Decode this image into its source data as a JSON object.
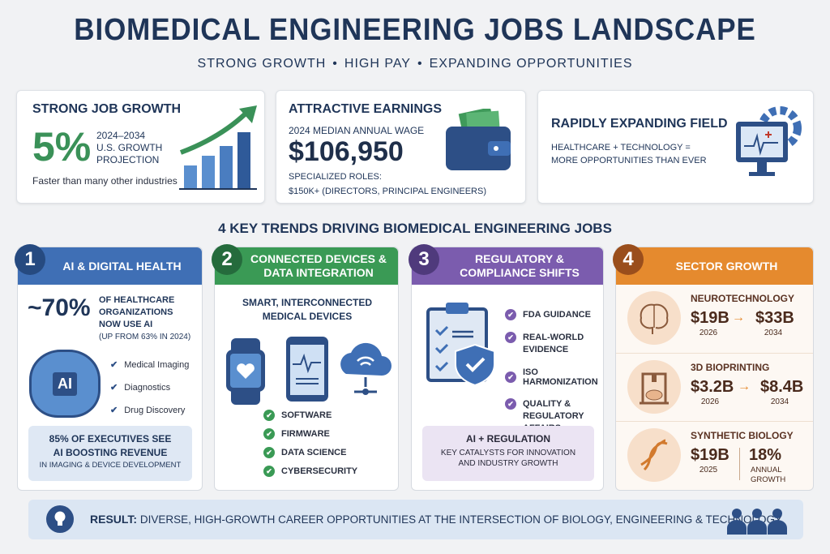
{
  "header": {
    "title": "BIOMEDICAL ENGINEERING JOBS LANDSCAPE",
    "subtitle": [
      "STRONG GROWTH",
      "HIGH PAY",
      "EXPANDING OPPORTUNITIES"
    ],
    "separator": "•"
  },
  "cards": {
    "growth": {
      "title": "STRONG JOB GROWTH",
      "value": "5%",
      "desc_lines": [
        "2024–2034",
        "U.S. GROWTH",
        "PROJECTION"
      ],
      "note": "Faster than many other industries",
      "icon": "bar-chart-arrow-icon"
    },
    "earnings": {
      "title": "ATTRACTIVE EARNINGS",
      "label": "2024 MEDIAN ANNUAL WAGE",
      "value": "$106,950",
      "roles_label": "SPECIALIZED ROLES:",
      "roles_value": "$150K+ (DIRECTORS, PRINCIPAL ENGINEERS)",
      "icon": "wallet-icon"
    },
    "field": {
      "title": "RAPIDLY EXPANDING FIELD",
      "desc_lines": [
        "HEALTHCARE + TECHNOLOGY =",
        "MORE OPPORTUNITIES THAN EVER"
      ],
      "icon": "monitor-gear-icon"
    }
  },
  "trends_heading": "4 KEY TRENDS DRIVING BIOMEDICAL ENGINEERING JOBS",
  "trends": [
    {
      "number": "1",
      "title": "AI & DIGITAL HEALTH",
      "color": "#3f6fb5",
      "stat": "~70%",
      "stat_lines": [
        "OF HEALTHCARE",
        "ORGANIZATIONS",
        "NOW USE AI"
      ],
      "stat_note": "(UP FROM 63% IN 2024)",
      "items": [
        "Medical Imaging",
        "Diagnostics",
        "Drug Discovery"
      ],
      "icon_text": "AI",
      "callout": [
        "85% OF EXECUTIVES SEE",
        "AI BOOSTING REVENUE",
        "IN IMAGING & DEVICE DEVELOPMENT"
      ]
    },
    {
      "number": "2",
      "title_lines": [
        "CONNECTED DEVICES &",
        "DATA INTEGRATION"
      ],
      "color": "#3a9a55",
      "subtitle_lines": [
        "SMART, INTERCONNECTED",
        "MEDICAL DEVICES"
      ],
      "items": [
        "SOFTWARE",
        "FIRMWARE",
        "DATA SCIENCE",
        "CYBERSECURITY"
      ]
    },
    {
      "number": "3",
      "title_lines": [
        "REGULATORY &",
        "COMPLIANCE SHIFTS"
      ],
      "color": "#7b5cae",
      "items": [
        [
          "FDA GUIDANCE"
        ],
        [
          "REAL-WORLD",
          "EVIDENCE"
        ],
        [
          "ISO HARMONIZATION"
        ],
        [
          "QUALITY &",
          "REGULATORY AFFAIRS"
        ]
      ],
      "callout_title": "AI + REGULATION",
      "callout_lines": [
        "KEY CATALYSTS FOR INNOVATION",
        "AND INDUSTRY GROWTH"
      ]
    },
    {
      "number": "4",
      "title": "SECTOR GROWTH",
      "color": "#e58a2e",
      "sectors": [
        {
          "name": "NEUROTECHNOLOGY",
          "from": "$19B",
          "from_year": "2026",
          "to": "$33B",
          "to_year": "2034",
          "arrow": "→"
        },
        {
          "name": "3D BIOPRINTING",
          "from": "$3.2B",
          "from_year": "2026",
          "to": "$8.4B",
          "to_year": "2034",
          "arrow": "→"
        },
        {
          "name": "SYNTHETIC BIOLOGY",
          "from": "$19B",
          "from_year": "2025",
          "rate": "18%",
          "rate_lines": [
            "ANNUAL",
            "GROWTH"
          ]
        }
      ]
    }
  ],
  "result": {
    "label": "RESULT:",
    "text": "DIVERSE, HIGH-GROWTH CAREER OPPORTUNITIES AT THE INTERSECTION OF BIOLOGY, ENGINEERING & TECHNOLOGY."
  }
}
